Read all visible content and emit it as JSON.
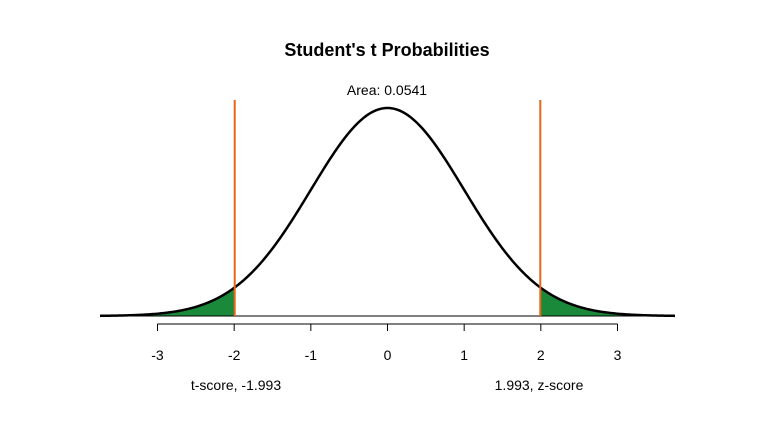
{
  "chart_data": {
    "type": "area",
    "title": "Student's t Probabilities",
    "area_label": "Area: 0.0541",
    "distribution": "student-t",
    "mean": 0,
    "sd": 1,
    "xlim": [
      -3.75,
      3.75
    ],
    "ylim": [
      0,
      0.4
    ],
    "grid": false,
    "ticks": [
      {
        "value": -3,
        "label": "-3"
      },
      {
        "value": -2,
        "label": "-2"
      },
      {
        "value": -1,
        "label": "-1"
      },
      {
        "value": 0,
        "label": "0"
      },
      {
        "value": 1,
        "label": "1"
      },
      {
        "value": 2,
        "label": "2"
      },
      {
        "value": 3,
        "label": "3"
      }
    ],
    "cutoffs": {
      "lower": -1.993,
      "upper": 1.993
    },
    "shaded_regions": [
      {
        "from": -3.75,
        "to": -1.993
      },
      {
        "from": 1.993,
        "to": 3.75
      }
    ],
    "left_label": "t-score, -1.993",
    "right_label": "1.993, z-score",
    "colors": {
      "curve": "#000000",
      "shade": "#1a8a3a",
      "cutoff_line": "#e8651a",
      "axis": "#000000"
    }
  }
}
